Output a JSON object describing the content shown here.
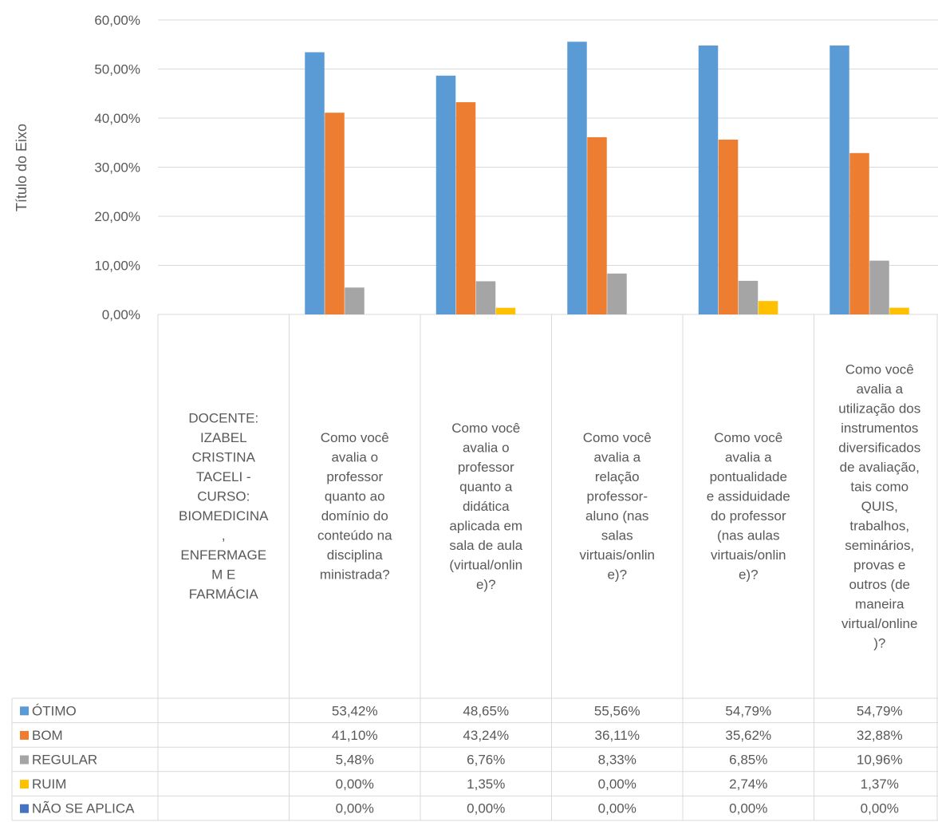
{
  "chart_data": {
    "type": "bar",
    "title": "",
    "xlabel": "",
    "ylabel": "Título do Eixo",
    "ylim": [
      0,
      0.6
    ],
    "y_ticks": [
      "0,00%",
      "10,00%",
      "20,00%",
      "30,00%",
      "40,00%",
      "50,00%",
      "60,00%"
    ],
    "grid": true,
    "legend": "data-table",
    "categories": [
      "DOCENTE: IZABEL CRISTINA TACELI - CURSO: BIOMEDICINA, ENFERMAGEM E FARMÁCIA",
      "Como você avalia o professor quanto ao domínio do conteúdo na disciplina ministrada?",
      "Como você avalia o professor quanto a didática aplicada em sala de aula (virtual/online)?",
      "Como você avalia a relação professor-aluno (nas salas virtuais/online)?",
      "Como você avalia a pontualidade e assiduidade do professor (nas aulas virtuais/online)?",
      "Como você avalia a utilização dos instrumentos diversificados de avaliação, tais como QUIS, trabalhos, seminários, provas e outros (de maneira virtual/online)?"
    ],
    "category_lines": [
      [
        "DOCENTE:",
        "IZABEL",
        "CRISTINA",
        "TACELI -",
        "CURSO:",
        "BIOMEDICINA",
        ",",
        "ENFERMAGE",
        "M E",
        "FARMÁCIA"
      ],
      [
        "Como você",
        "avalia o",
        "professor",
        "quanto ao",
        "domínio do",
        "conteúdo na",
        "disciplina",
        "ministrada?"
      ],
      [
        "Como você",
        "avalia o",
        "professor",
        "quanto a",
        "didática",
        "aplicada em",
        "sala de aula",
        "(virtual/onlin",
        "e)?"
      ],
      [
        "Como você",
        "avalia a",
        "relação",
        "professor-",
        "aluno (nas",
        "salas",
        "virtuais/onlin",
        "e)?"
      ],
      [
        "Como você",
        "avalia a",
        "pontualidade",
        "e assiduidade",
        "do professor",
        "(nas aulas",
        "virtuais/onlin",
        "e)?"
      ],
      [
        "Como você",
        "avalia a",
        "utilização dos",
        "instrumentos",
        "diversificados",
        "de avaliação,",
        "tais como",
        "QUIS,",
        "trabalhos,",
        "seminários,",
        "provas e",
        "outros (de",
        "maneira",
        "virtual/online",
        ")?"
      ]
    ],
    "series": [
      {
        "name": "ÓTIMO",
        "color": "#5B9BD5",
        "values": [
          null,
          0.5342,
          0.4865,
          0.5556,
          0.5479,
          0.5479
        ],
        "labels": [
          "",
          "53,42%",
          "48,65%",
          "55,56%",
          "54,79%",
          "54,79%"
        ]
      },
      {
        "name": "BOM",
        "color": "#ED7D31",
        "values": [
          null,
          0.411,
          0.4324,
          0.3611,
          0.3562,
          0.3288
        ],
        "labels": [
          "",
          "41,10%",
          "43,24%",
          "36,11%",
          "35,62%",
          "32,88%"
        ]
      },
      {
        "name": "REGULAR",
        "color": "#A5A5A5",
        "values": [
          null,
          0.0548,
          0.0676,
          0.0833,
          0.0685,
          0.1096
        ],
        "labels": [
          "",
          "5,48%",
          "6,76%",
          "8,33%",
          "6,85%",
          "10,96%"
        ]
      },
      {
        "name": "RUIM",
        "color": "#FFC000",
        "values": [
          null,
          0.0,
          0.0135,
          0.0,
          0.0274,
          0.0137
        ],
        "labels": [
          "",
          "0,00%",
          "1,35%",
          "0,00%",
          "2,74%",
          "1,37%"
        ]
      },
      {
        "name": "NÃO SE APLICA",
        "color": "#4472C4",
        "values": [
          null,
          0.0,
          0.0,
          0.0,
          0.0,
          0.0
        ],
        "labels": [
          "",
          "0,00%",
          "0,00%",
          "0,00%",
          "0,00%",
          "0,00%"
        ]
      }
    ]
  }
}
